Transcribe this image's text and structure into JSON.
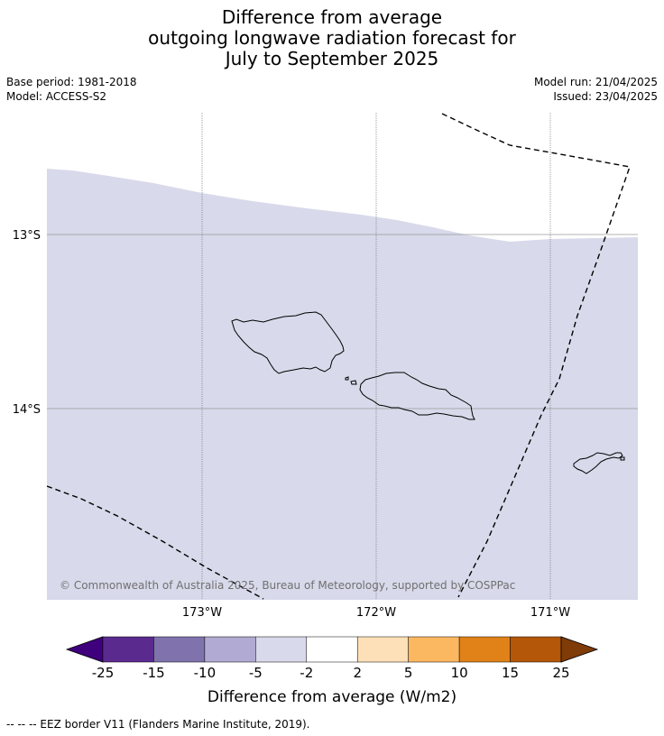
{
  "title": {
    "line1": "Difference from average",
    "line2": "outgoing longwave radiation forecast for",
    "line3": "July to September 2025"
  },
  "meta": {
    "base_period": "Base period: 1981-2018",
    "model": "Model: ACCESS-S2",
    "model_run": "Model run: 21/04/2025",
    "issued": "Issued: 23/04/2025"
  },
  "map": {
    "lat_labels": [
      "13°S",
      "14°S"
    ],
    "lon_labels": [
      "173°W",
      "172°W",
      "171°W"
    ],
    "fill_category": "-5 to -2",
    "fill_color": "#d8d9ea",
    "copyright": "© Commonwealth of Australia 2025, Bureau of Meteorology, supported by COSPPac"
  },
  "legend": {
    "title": "Difference from average (W/m2)",
    "tick_labels": [
      "-25",
      "-15",
      "-10",
      "-5",
      "-2",
      "2",
      "5",
      "10",
      "15",
      "25"
    ],
    "colors": [
      "#3f007d",
      "#5b2a8f",
      "#8073ad",
      "#b1aad3",
      "#d8d9ea",
      "#ffffff",
      "#fde0b7",
      "#fcb761",
      "#e08218",
      "#b45708",
      "#7f3b08"
    ]
  },
  "footer": {
    "eez_note": "--  --  -- EEZ border V11 (Flanders Marine Institute, 2019)."
  }
}
